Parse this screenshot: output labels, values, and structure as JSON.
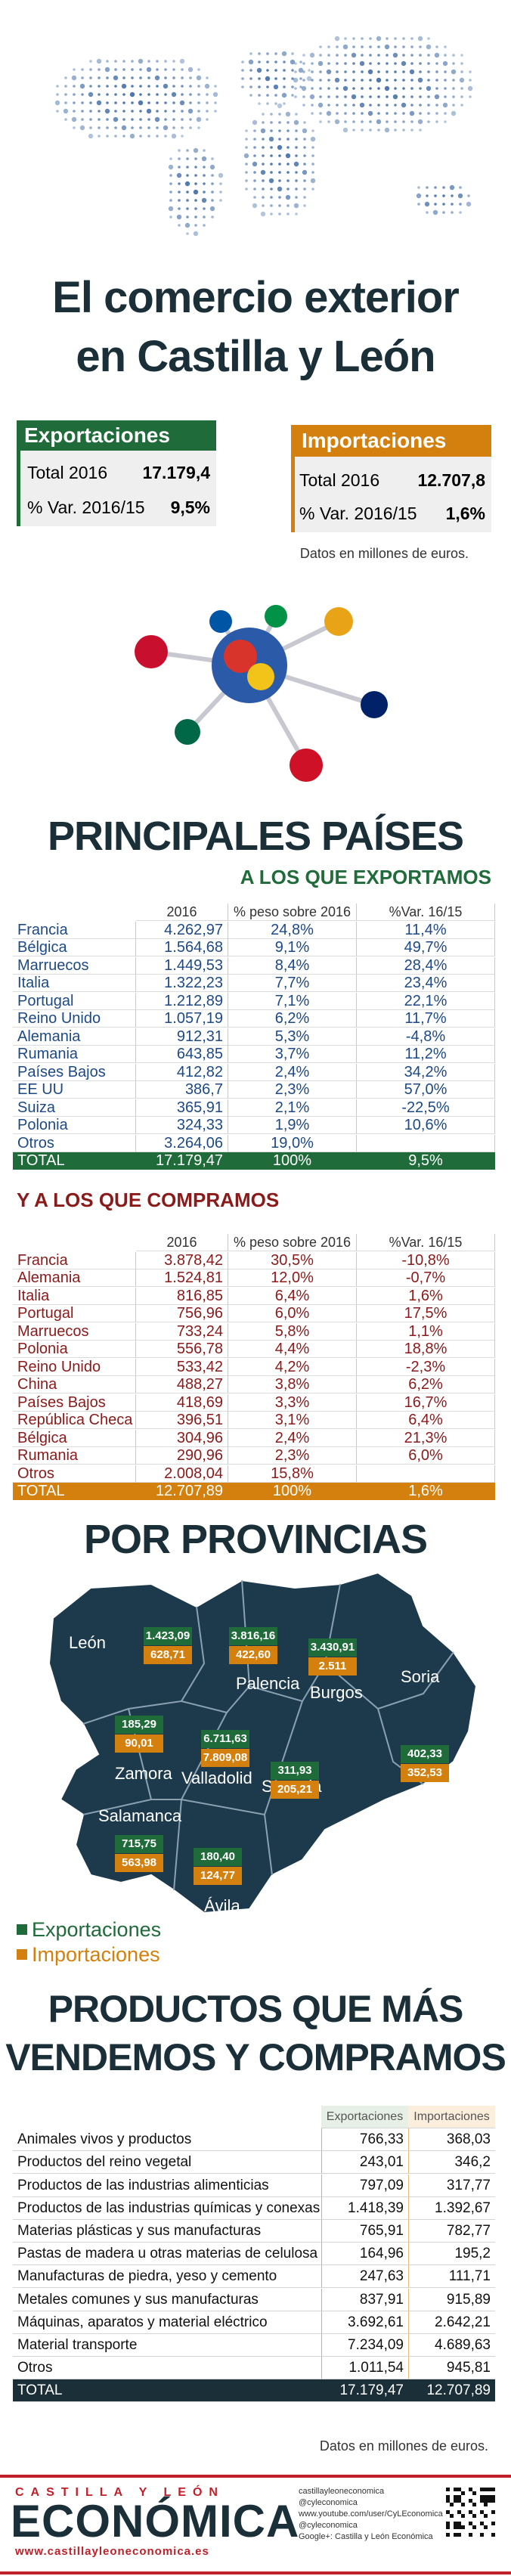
{
  "header": {
    "title_line1": "El comercio exterior",
    "title_line2": "en Castilla y León"
  },
  "summary": {
    "exports": {
      "title": "Exportaciones",
      "rows": [
        [
          "Total 2016",
          "17.179,4"
        ],
        [
          "% Var. 2016/15",
          "9,5%"
        ]
      ]
    },
    "imports": {
      "title": "Importaciones",
      "rows": [
        [
          "Total 2016",
          "12.707,8"
        ],
        [
          "% Var. 2016/15",
          "1,6%"
        ]
      ]
    },
    "note": "Datos en millones de euros."
  },
  "countries": {
    "title": "PRINCIPALES PAÍSES",
    "exports": {
      "subtitle": "A LOS QUE EXPORTAMOS",
      "columns": [
        "2016",
        "% peso sobre 2016",
        "%Var. 16/15"
      ],
      "rows": [
        [
          "Francia",
          "4.262,97",
          "24,8%",
          "11,4%"
        ],
        [
          "Bélgica",
          "1.564,68",
          "9,1%",
          "49,7%"
        ],
        [
          "Marruecos",
          "1.449,53",
          "8,4%",
          "28,4%"
        ],
        [
          "Italia",
          "1.322,23",
          "7,7%",
          "23,4%"
        ],
        [
          "Portugal",
          "1.212,89",
          "7,1%",
          "22,1%"
        ],
        [
          "Reino Unido",
          "1.057,19",
          "6,2%",
          "11,7%"
        ],
        [
          "Alemania",
          "912,31",
          "5,3%",
          "-4,8%"
        ],
        [
          "Rumania",
          "643,85",
          "3,7%",
          "11,2%"
        ],
        [
          "Países Bajos",
          "412,82",
          "2,4%",
          "34,2%"
        ],
        [
          "EE UU",
          "386,7",
          "2,3%",
          "57,0%"
        ],
        [
          "Suiza",
          "365,91",
          "2,1%",
          "-22,5%"
        ],
        [
          "Polonia",
          "324,33",
          "1,9%",
          "10,6%"
        ],
        [
          "Otros",
          "3.264,06",
          "19,0%",
          null
        ]
      ],
      "total": [
        "TOTAL",
        "17.179,47",
        "100%",
        "9,5%"
      ]
    },
    "imports": {
      "subtitle": "Y A LOS QUE COMPRAMOS",
      "columns": [
        "2016",
        "% peso sobre 2016",
        "%Var. 16/15"
      ],
      "rows": [
        [
          "Francia",
          "3.878,42",
          "30,5%",
          "-10,8%"
        ],
        [
          "Alemania",
          "1.524,81",
          "12,0%",
          "-0,7%"
        ],
        [
          "Italia",
          "816,85",
          "6,4%",
          "1,6%"
        ],
        [
          "Portugal",
          "756,96",
          "6,0%",
          "17,5%"
        ],
        [
          "Marruecos",
          "733,24",
          "5,8%",
          "1,1%"
        ],
        [
          "Polonia",
          "556,78",
          "4,4%",
          "18,8%"
        ],
        [
          "Reino Unido",
          "533,42",
          "4,2%",
          "-2,3%"
        ],
        [
          "China",
          "488,27",
          "3,8%",
          "6,2%"
        ],
        [
          "Países Bajos",
          "418,69",
          "3,3%",
          "16,7%"
        ],
        [
          "República Checa",
          "396,51",
          "3,1%",
          "6,4%"
        ],
        [
          "Bélgica",
          "304,96",
          "2,4%",
          "21,3%"
        ],
        [
          "Rumania",
          "290,96",
          "2,3%",
          "6,0%"
        ],
        [
          "Otros",
          "2.008,04",
          "15,8%",
          null
        ]
      ],
      "total": [
        "TOTAL",
        "12.707,89",
        "100%",
        "1,6%"
      ]
    }
  },
  "provinces": {
    "title": "POR PROVINCIAS",
    "items": [
      {
        "name": "León",
        "exports": "1.423,09",
        "imports": "628,71"
      },
      {
        "name": "Palencia",
        "exports": "3.816,16",
        "imports": "422,60"
      },
      {
        "name": "Burgos",
        "exports": "3.430,91",
        "imports": "2.511"
      },
      {
        "name": "Soria",
        "exports": "402,33",
        "imports": "352,53"
      },
      {
        "name": "Zamora",
        "exports": "185,29",
        "imports": "90,01"
      },
      {
        "name": "Valladolid",
        "exports": "6.711,63",
        "imports": "7.809,08"
      },
      {
        "name": "Segovia",
        "exports": "311,93",
        "imports": "205,21"
      },
      {
        "name": "Salamanca",
        "exports": "715,75",
        "imports": "563,98"
      },
      {
        "name": "Ávila",
        "exports": "180,40",
        "imports": "124,77"
      }
    ],
    "legend": [
      "Exportaciones",
      "Importaciones"
    ]
  },
  "products": {
    "title_line1": "PRODUCTOS QUE MÁS",
    "title_line2": "VENDEMOS Y COMPRAMOS",
    "columns": [
      "Exportaciones",
      "Importaciones"
    ],
    "rows": [
      [
        "Animales vivos y productos",
        "766,33",
        "368,03"
      ],
      [
        "Productos del reino vegetal",
        "243,01",
        "346,2"
      ],
      [
        "Productos de las industrias alimenticias",
        "797,09",
        "317,77"
      ],
      [
        "Productos de las industrias químicas y conexas",
        "1.418,39",
        "1.392,67"
      ],
      [
        "Materias plásticas y sus manufacturas",
        "765,91",
        "782,77"
      ],
      [
        "Pastas de madera u otras materias de celulosa",
        "164,96",
        "195,2"
      ],
      [
        "Manufacturas de piedra, yeso y cemento",
        "247,63",
        "111,71"
      ],
      [
        "Metales comunes y sus manufacturas",
        "837,91",
        "915,89"
      ],
      [
        "Máquinas, aparatos y material eléctrico",
        "3.692,61",
        "2.642,21"
      ],
      [
        "Material transporte",
        "7.234,09",
        "4.689,63"
      ],
      [
        "Otros",
        "1.011,54",
        "945,81"
      ]
    ],
    "total": [
      "TOTAL",
      "17.179,47",
      "12.707,89"
    ],
    "note": "Datos en millones de euros."
  },
  "footer": {
    "brand_top": "CASTILLA Y LEÓN",
    "brand_main": "ECONÓMICA",
    "url": "www.castillayleoneconomica.es",
    "social": [
      "castillayleoneconomica",
      "@cyleconomica",
      "www.youtube.com/user/CyLEconomica",
      "@cyleconomica",
      "Google+: Castilla y León Económica"
    ]
  }
}
